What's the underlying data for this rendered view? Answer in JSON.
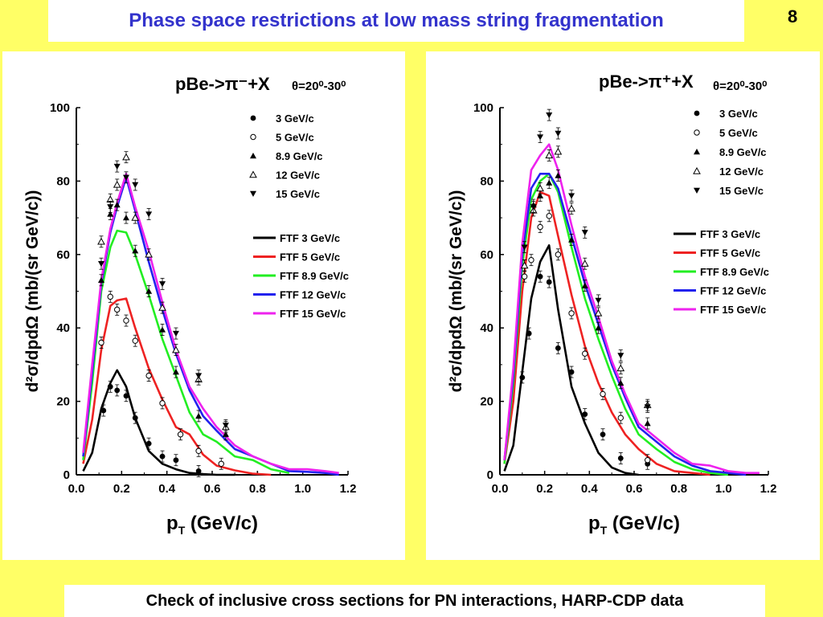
{
  "slide": {
    "title": "Phase space restrictions at low mass string fragmentation",
    "page_number": "8",
    "caption": "Check of inclusive cross sections for PN interactions, HARP-CDP data"
  },
  "chart_data": [
    {
      "type": "line+scatter",
      "title": "pBe->π⁻+X",
      "angle_label": "θ=20⁰-30⁰",
      "xlabel": "p",
      "xlabel_sub": "T",
      "xlabel_unit": " (GeV/c)",
      "ylabel": "d²σ/dpdΩ (mb/(sr GeV/c))",
      "xlim": [
        0.0,
        1.2
      ],
      "ylim": [
        0,
        100
      ],
      "xticks": [
        "0.0",
        "0.2",
        "0.4",
        "0.6",
        "0.8",
        "1.0",
        "1.2"
      ],
      "yticks": [
        "0",
        "20",
        "40",
        "60",
        "80",
        "100"
      ],
      "legend": "top-right",
      "data_series": [
        {
          "name": "3 GeV/c",
          "marker": "circle-filled",
          "x": [
            0.12,
            0.15,
            0.18,
            0.22,
            0.26,
            0.32,
            0.38,
            0.44,
            0.54
          ],
          "y": [
            17.5,
            24,
            23,
            21.5,
            15.5,
            8.5,
            5,
            4,
            1
          ]
        },
        {
          "name": "5 GeV/c",
          "marker": "circle-open",
          "x": [
            0.11,
            0.15,
            0.18,
            0.22,
            0.26,
            0.32,
            0.38,
            0.46,
            0.54,
            0.64
          ],
          "y": [
            36,
            48.5,
            45,
            42,
            36.5,
            27,
            19.5,
            11,
            6.5,
            3
          ]
        },
        {
          "name": "8.9 GeV/c",
          "marker": "triangle-up-filled",
          "x": [
            0.11,
            0.15,
            0.18,
            0.22,
            0.26,
            0.32,
            0.38,
            0.44,
            0.54,
            0.66
          ],
          "y": [
            53,
            71,
            73.5,
            70,
            61,
            50,
            39.5,
            28,
            16,
            11
          ]
        },
        {
          "name": "12 GeV/c",
          "marker": "triangle-up-open",
          "x": [
            0.11,
            0.15,
            0.18,
            0.22,
            0.26,
            0.32,
            0.38,
            0.44,
            0.54,
            0.66
          ],
          "y": [
            63.5,
            75,
            79,
            86.5,
            70,
            60,
            45.5,
            34,
            26,
            13
          ]
        },
        {
          "name": "15 GeV/c",
          "marker": "triangle-down-filled",
          "x": [
            0.11,
            0.15,
            0.18,
            0.22,
            0.26,
            0.32,
            0.38,
            0.44,
            0.54,
            0.66
          ],
          "y": [
            57.5,
            73,
            84,
            81,
            79,
            71,
            52,
            38.5,
            27,
            13.5
          ]
        }
      ],
      "model_series": [
        {
          "name": "FTF    3 GeV/c",
          "color": "#000000",
          "x": [
            0.03,
            0.07,
            0.11,
            0.15,
            0.18,
            0.22,
            0.26,
            0.32,
            0.38,
            0.44,
            0.5,
            0.56,
            0.62,
            0.7
          ],
          "y": [
            1,
            6,
            18,
            25,
            28.5,
            24,
            15.5,
            6.5,
            3,
            1.5,
            0.5,
            0.2,
            0,
            0
          ]
        },
        {
          "name": "FTF    5 GeV/c",
          "color": "#ee2222",
          "x": [
            0.03,
            0.07,
            0.11,
            0.15,
            0.18,
            0.22,
            0.26,
            0.32,
            0.38,
            0.44,
            0.5,
            0.56,
            0.62,
            0.7,
            0.78,
            0.86
          ],
          "y": [
            3,
            15,
            34,
            46,
            47.5,
            48,
            40,
            29,
            20.5,
            13,
            11,
            5.5,
            2.5,
            1.2,
            0.3,
            0
          ]
        },
        {
          "name": "FTF 8.9 GeV/c",
          "color": "#22ee22",
          "x": [
            0.03,
            0.07,
            0.11,
            0.15,
            0.18,
            0.22,
            0.26,
            0.32,
            0.38,
            0.44,
            0.5,
            0.56,
            0.62,
            0.7,
            0.78,
            0.86,
            0.94
          ],
          "y": [
            4,
            25,
            50,
            62,
            66.5,
            66,
            60,
            49,
            37,
            27,
            17,
            11,
            9,
            5,
            4,
            1.5,
            0.5
          ]
        },
        {
          "name": "FTF 12 GeV/c",
          "color": "#2222ee",
          "x": [
            0.03,
            0.07,
            0.11,
            0.15,
            0.18,
            0.22,
            0.26,
            0.32,
            0.38,
            0.44,
            0.5,
            0.56,
            0.62,
            0.7,
            0.78,
            0.86,
            0.94,
            1.02,
            1.1,
            1.16
          ],
          "y": [
            5,
            28,
            52,
            66,
            73,
            81,
            72,
            58,
            45,
            33,
            23,
            16,
            12,
            7,
            5,
            3,
            1,
            0.8,
            0.5,
            0
          ]
        },
        {
          "name": "FTF 15 GeV/c",
          "color": "#ee22ee",
          "x": [
            0.03,
            0.07,
            0.11,
            0.15,
            0.18,
            0.22,
            0.26,
            0.32,
            0.38,
            0.44,
            0.5,
            0.56,
            0.62,
            0.7,
            0.78,
            0.86,
            0.94,
            1.02,
            1.1,
            1.16
          ],
          "y": [
            6,
            30,
            53,
            67,
            74,
            82,
            73,
            61,
            47,
            34,
            24,
            18,
            13,
            8,
            5,
            3,
            1.5,
            1.5,
            1,
            0.5
          ]
        }
      ]
    },
    {
      "type": "line+scatter",
      "title": "pBe->π⁺+X",
      "angle_label": "θ=20⁰-30⁰",
      "xlabel": "p",
      "xlabel_sub": "T",
      "xlabel_unit": " (GeV/c)",
      "ylabel": "d²σ/dpdΩ (mb/(sr GeV/c))",
      "xlim": [
        0.0,
        1.2
      ],
      "ylim": [
        0,
        100
      ],
      "xticks": [
        "0.0",
        "0.2",
        "0.4",
        "0.6",
        "0.8",
        "1.0",
        "1.2"
      ],
      "yticks": [
        "0",
        "20",
        "40",
        "60",
        "80",
        "100"
      ],
      "legend": "top-right",
      "data_series": [
        {
          "name": "3 GeV/c",
          "marker": "circle-filled",
          "x": [
            0.1,
            0.13,
            0.18,
            0.22,
            0.26,
            0.32,
            0.38,
            0.46,
            0.54,
            0.66
          ],
          "y": [
            26.5,
            38.5,
            54,
            52.5,
            34.5,
            28,
            16.5,
            11,
            4.5,
            3
          ]
        },
        {
          "name": "5 GeV/c",
          "marker": "circle-open",
          "x": [
            0.11,
            0.14,
            0.18,
            0.22,
            0.26,
            0.32,
            0.38,
            0.46,
            0.54,
            0.66
          ],
          "y": [
            54,
            58.5,
            67.5,
            70.5,
            60,
            44,
            33,
            22,
            15.5,
            4
          ]
        },
        {
          "name": "8.9 GeV/c",
          "marker": "triangle-up-filled",
          "x": [
            0.11,
            0.15,
            0.18,
            0.22,
            0.26,
            0.32,
            0.38,
            0.44,
            0.54,
            0.66
          ],
          "y": [
            57,
            73.5,
            76,
            79.5,
            81.5,
            64,
            51.5,
            40,
            25,
            14
          ]
        },
        {
          "name": "12 GeV/c",
          "marker": "triangle-up-open",
          "x": [
            0.11,
            0.15,
            0.18,
            0.22,
            0.26,
            0.32,
            0.38,
            0.44,
            0.54,
            0.66
          ],
          "y": [
            57,
            72,
            78,
            87,
            88,
            72.5,
            57.5,
            44,
            29,
            19
          ]
        },
        {
          "name": "15 GeV/c",
          "marker": "triangle-down-filled",
          "x": [
            0.11,
            0.15,
            0.18,
            0.22,
            0.26,
            0.32,
            0.38,
            0.44,
            0.54,
            0.66
          ],
          "y": [
            62,
            73,
            92,
            98,
            93,
            76,
            66,
            47.5,
            32.5,
            18.5
          ]
        }
      ],
      "model_series": [
        {
          "name": "FTF    3 GeV/c",
          "color": "#000000",
          "x": [
            0.02,
            0.06,
            0.1,
            0.14,
            0.18,
            0.22,
            0.26,
            0.32,
            0.38,
            0.44,
            0.5,
            0.56,
            0.62
          ],
          "y": [
            1,
            8,
            28,
            48,
            58,
            62.5,
            45,
            24,
            14,
            6,
            2,
            0.5,
            0
          ]
        },
        {
          "name": "FTF    5 GeV/c",
          "color": "#ee2222",
          "x": [
            0.02,
            0.06,
            0.1,
            0.14,
            0.18,
            0.22,
            0.26,
            0.32,
            0.38,
            0.44,
            0.5,
            0.56,
            0.62,
            0.7,
            0.78,
            0.86,
            0.94
          ],
          "y": [
            3,
            20,
            50,
            70,
            77,
            76,
            65,
            49,
            35,
            25,
            17,
            11,
            7,
            3,
            1,
            0.5,
            0
          ]
        },
        {
          "name": "FTF 8.9 GeV/c",
          "color": "#22ee22",
          "x": [
            0.02,
            0.06,
            0.1,
            0.14,
            0.18,
            0.22,
            0.26,
            0.32,
            0.38,
            0.44,
            0.5,
            0.56,
            0.62,
            0.7,
            0.78,
            0.86,
            0.94,
            1.02
          ],
          "y": [
            3,
            25,
            57,
            75,
            80,
            82,
            77,
            62,
            48,
            37,
            27,
            18,
            11,
            7,
            3.5,
            1.5,
            0.5,
            0
          ]
        },
        {
          "name": "FTF 12 GeV/c",
          "color": "#2222ee",
          "x": [
            0.02,
            0.06,
            0.1,
            0.14,
            0.18,
            0.22,
            0.26,
            0.32,
            0.38,
            0.44,
            0.5,
            0.56,
            0.62,
            0.7,
            0.78,
            0.86,
            0.94,
            1.02,
            1.1
          ],
          "y": [
            4,
            27,
            60,
            78,
            82,
            82,
            78,
            65,
            52,
            41,
            30,
            21,
            13,
            9,
            5,
            2.5,
            1,
            0.5,
            0
          ]
        },
        {
          "name": "FTF 15 GeV/c",
          "color": "#ee22ee",
          "x": [
            0.02,
            0.06,
            0.1,
            0.14,
            0.18,
            0.22,
            0.26,
            0.32,
            0.38,
            0.44,
            0.5,
            0.56,
            0.62,
            0.7,
            0.78,
            0.86,
            0.94,
            1.02,
            1.1,
            1.16
          ],
          "y": [
            4,
            29,
            63,
            83,
            87,
            90,
            83,
            68,
            54,
            43,
            31,
            22,
            14,
            10,
            6,
            3,
            2.5,
            1,
            0.5,
            0.5
          ]
        }
      ]
    }
  ]
}
